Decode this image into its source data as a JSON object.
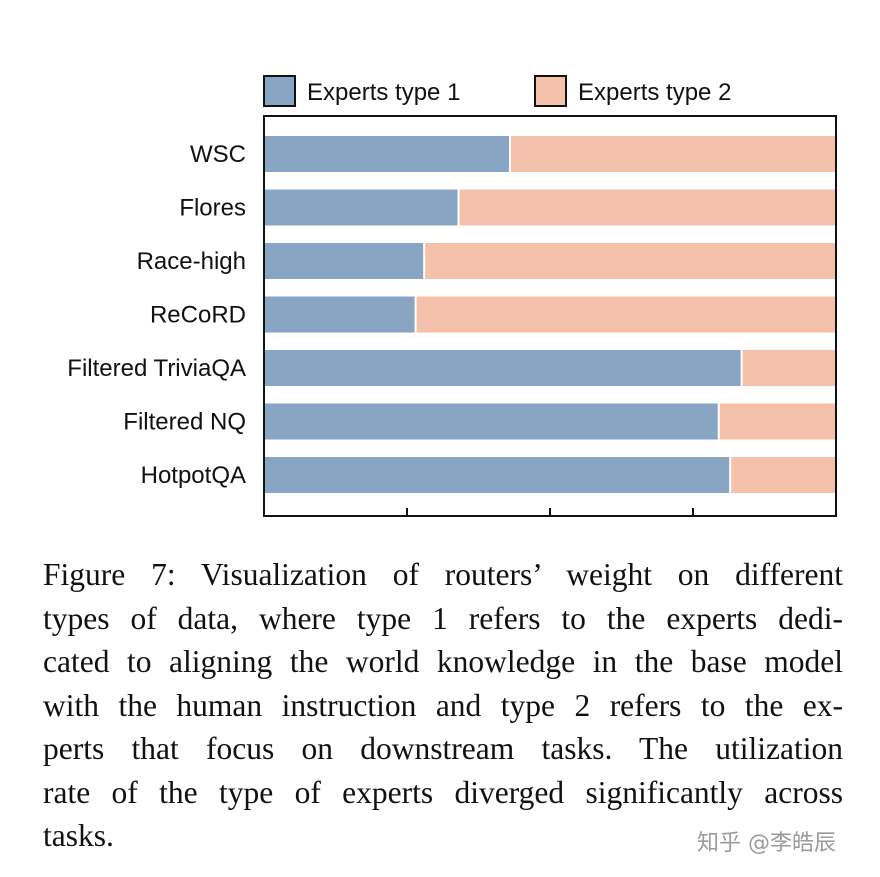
{
  "chart_data": {
    "type": "bar",
    "orientation": "horizontal",
    "stacked": true,
    "normalized": true,
    "categories": [
      "WSC",
      "Flores",
      "Race-high",
      "ReCoRD",
      "Filtered TriviaQA",
      "Filtered NQ",
      "HotpotQA"
    ],
    "series": [
      {
        "name": "Experts type 1",
        "color": "#88a6c4",
        "values": [
          0.43,
          0.34,
          0.28,
          0.265,
          0.835,
          0.795,
          0.815
        ]
      },
      {
        "name": "Experts type 2",
        "color": "#f4c1ab",
        "values": [
          0.57,
          0.66,
          0.72,
          0.735,
          0.165,
          0.205,
          0.185
        ]
      }
    ],
    "xlim": [
      0,
      1
    ],
    "title": "",
    "xlabel": "",
    "ylabel": "",
    "legend_position": "top",
    "grid": false
  },
  "caption": {
    "lines": [
      "Figure 7: Visualization of routers’ weight on different",
      "types of data, where type 1 refers to the experts dedi-",
      "cated to aligning the world knowledge in the base model",
      "with the human instruction and type 2 refers to the ex-",
      "perts that focus on downstream tasks. The utilization",
      "rate of the type of experts diverged significantly across",
      "tasks."
    ]
  },
  "watermark": "知乎 @李皓辰"
}
